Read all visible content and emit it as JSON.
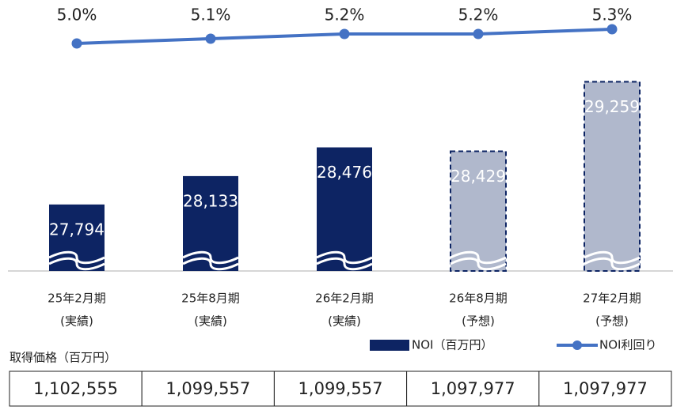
{
  "chart_data": {
    "type": "bar_line",
    "categories": [
      [
        "25年2月期",
        "(実績)"
      ],
      [
        "25年8月期",
        "(実績)"
      ],
      [
        "26年2月期",
        "(実績)"
      ],
      [
        "26年8月期",
        "(予想)"
      ],
      [
        "27年2月期",
        "(予想)"
      ]
    ],
    "series": [
      {
        "name": "NOI（百万円）",
        "type": "bar",
        "color": "#0d2463",
        "forecast_color": "#b0b8cc",
        "values": [
          27794,
          28133,
          28476,
          28429,
          29259
        ],
        "value_labels": [
          "27,794",
          "28,133",
          "28,476",
          "28,429",
          "29,259"
        ],
        "dashed": [
          false,
          false,
          false,
          true,
          true
        ]
      },
      {
        "name": "NOI利回り",
        "type": "line",
        "axis": "y2",
        "color": "#4472c4",
        "values": [
          5.0,
          5.1,
          5.2,
          5.2,
          5.3
        ],
        "value_labels": [
          "5.0%",
          "5.1%",
          "5.2%",
          "5.2%",
          "5.3%"
        ]
      }
    ],
    "ylim": [
      27000,
      29500
    ],
    "y2lim": [
      4.5,
      5.5
    ],
    "table": {
      "title": "取得価格（百万円）",
      "cells": [
        "1,102,555",
        "1,099,557",
        "1,099,557",
        "1,097,977",
        "1,097,977"
      ]
    }
  }
}
